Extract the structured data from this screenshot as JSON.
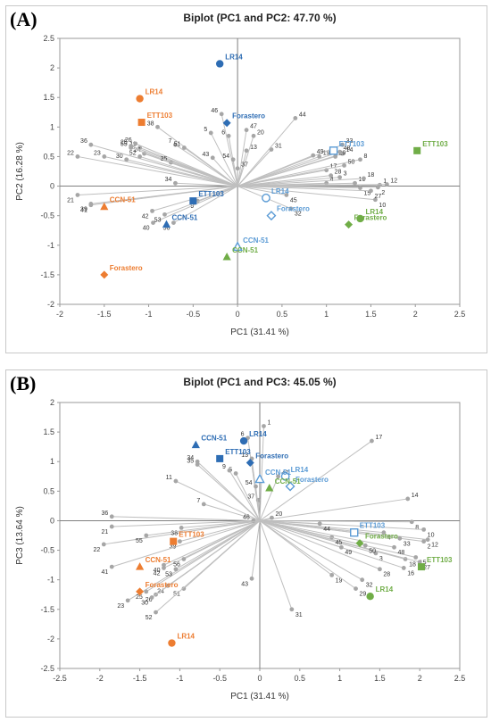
{
  "colors": {
    "ETT103": "#F0782D",
    "CCN51": "#E8833A",
    "LR14": "#2E6DB4",
    "orange": "#ED7D31",
    "darkblue": "#2E6DB4",
    "lightblue": "#5B9BD5",
    "green": "#70AD47",
    "vector": "#BFBFBF",
    "vecpoint": "#A6A6A6"
  },
  "chart_data": [
    {
      "type": "scatter",
      "panel_tag": "(A)",
      "title": "Biplot (PC1 and PC2: 47.70 %)",
      "xlabel": "PC1 (31.41 %)",
      "ylabel": "PC2 (16.28 %)",
      "xlim": [
        -2,
        2.5
      ],
      "ylim": [
        -2,
        2.5
      ],
      "xticks": [
        "-2",
        "-1.5",
        "-1",
        "-0.5",
        "0",
        "0.5",
        "1",
        "1.5",
        "2",
        "2.5"
      ],
      "yticks": [
        "-2",
        "-1.5",
        "-1",
        "-0.5",
        "0",
        "0.5",
        "1",
        "1.5",
        "2",
        "2.5"
      ],
      "vectors": [
        {
          "label": "1",
          "x": 1.6,
          "y": 0.02
        },
        {
          "label": "2",
          "x": 1.58,
          "y": -0.02
        },
        {
          "label": "3",
          "x": 1.15,
          "y": 0.15
        },
        {
          "label": "4",
          "x": 1.0,
          "y": 0.05
        },
        {
          "label": "5",
          "x": -0.3,
          "y": 0.9
        },
        {
          "label": "6",
          "x": -0.1,
          "y": 0.85
        },
        {
          "label": "7",
          "x": -0.7,
          "y": 0.7
        },
        {
          "label": "8",
          "x": 1.38,
          "y": 0.45
        },
        {
          "label": "9",
          "x": -0.45,
          "y": -0.25
        },
        {
          "label": "10",
          "x": 1.55,
          "y": -0.23
        },
        {
          "label": "11",
          "x": -1.1,
          "y": 0.65
        },
        {
          "label": "12",
          "x": 1.68,
          "y": 0.03
        },
        {
          "label": "13",
          "x": 0.1,
          "y": 0.6
        },
        {
          "label": "14",
          "x": 1.18,
          "y": 0.55
        },
        {
          "label": "15",
          "x": 1.38,
          "y": -0.03
        },
        {
          "label": "16",
          "x": 1.32,
          "y": 0.05
        },
        {
          "label": "17",
          "x": 1.0,
          "y": 0.27
        },
        {
          "label": "18",
          "x": 1.42,
          "y": 0.13
        },
        {
          "label": "19",
          "x": 0.92,
          "y": 0.5
        },
        {
          "label": "20",
          "x": 0.18,
          "y": 0.85
        },
        {
          "label": "21",
          "x": -1.8,
          "y": -0.15
        },
        {
          "label": "22",
          "x": -1.8,
          "y": 0.5
        },
        {
          "label": "23",
          "x": -1.5,
          "y": 0.5
        },
        {
          "label": "24",
          "x": -1.05,
          "y": 0.55
        },
        {
          "label": "25",
          "x": -1.2,
          "y": 0.68
        },
        {
          "label": "26",
          "x": -1.15,
          "y": 0.72
        },
        {
          "label": "27",
          "x": 1.5,
          "y": -0.08
        },
        {
          "label": "28",
          "x": 1.05,
          "y": 0.18
        },
        {
          "label": "29",
          "x": 1.1,
          "y": 0.5
        },
        {
          "label": "30",
          "x": -1.25,
          "y": 0.45
        },
        {
          "label": "31",
          "x": 0.38,
          "y": 0.62
        },
        {
          "label": "32",
          "x": 0.6,
          "y": -0.38
        },
        {
          "label": "33",
          "x": 1.18,
          "y": 0.7
        },
        {
          "label": "34",
          "x": -0.7,
          "y": 0.05
        },
        {
          "label": "35",
          "x": -0.75,
          "y": 0.4
        },
        {
          "label": "36",
          "x": -1.65,
          "y": 0.7
        },
        {
          "label": "37",
          "x": 0.0,
          "y": 0.3
        },
        {
          "label": "38",
          "x": -0.9,
          "y": 1.0
        },
        {
          "label": "39",
          "x": -1.65,
          "y": -0.3
        },
        {
          "label": "40",
          "x": -0.95,
          "y": -0.62
        },
        {
          "label": "41",
          "x": -1.65,
          "y": -0.32
        },
        {
          "label": "42",
          "x": -0.96,
          "y": -0.42
        },
        {
          "label": "43",
          "x": -0.28,
          "y": 0.48
        },
        {
          "label": "44",
          "x": 0.65,
          "y": 1.15
        },
        {
          "label": "45",
          "x": 0.55,
          "y": -0.15
        },
        {
          "label": "46",
          "x": -0.18,
          "y": 1.22
        },
        {
          "label": "47",
          "x": 0.1,
          "y": 0.95
        },
        {
          "label": "48",
          "x": 1.15,
          "y": 0.58
        },
        {
          "label": "49",
          "x": 0.85,
          "y": 0.52
        },
        {
          "label": "50",
          "x": 1.2,
          "y": 0.35
        },
        {
          "label": "51",
          "x": -0.6,
          "y": 0.65
        },
        {
          "label": "52",
          "x": -1.1,
          "y": 0.5
        },
        {
          "label": "53",
          "x": -0.82,
          "y": -0.48
        },
        {
          "label": "54",
          "x": -0.05,
          "y": 0.45
        },
        {
          "label": "55",
          "x": -1.2,
          "y": 0.65
        },
        {
          "label": "56",
          "x": -0.72,
          "y": -0.62
        }
      ],
      "groups": [
        {
          "label": "LR14",
          "x": -0.2,
          "y": 2.07,
          "shape": "circle",
          "fill": "darkblue",
          "text": "darkblue"
        },
        {
          "label": "LR14",
          "x": -1.1,
          "y": 1.48,
          "shape": "circle",
          "fill": "orange",
          "text": "orange"
        },
        {
          "label": "LR14",
          "x": 0.32,
          "y": -0.2,
          "shape": "circle",
          "fill": "none",
          "text": "lightblue"
        },
        {
          "label": "LR14",
          "x": 1.38,
          "y": -0.55,
          "shape": "circle",
          "fill": "green",
          "text": "green"
        },
        {
          "label": "ETT103",
          "x": -1.08,
          "y": 1.08,
          "shape": "square",
          "fill": "orange",
          "text": "orange"
        },
        {
          "label": "ETT103",
          "x": -0.5,
          "y": -0.25,
          "shape": "square",
          "fill": "darkblue",
          "text": "darkblue"
        },
        {
          "label": "ETT103",
          "x": 1.08,
          "y": 0.6,
          "shape": "square",
          "fill": "none",
          "text": "lightblue"
        },
        {
          "label": "ETT103",
          "x": 2.02,
          "y": 0.6,
          "shape": "square",
          "fill": "green",
          "text": "green"
        },
        {
          "label": "Forastero",
          "x": -0.12,
          "y": 1.07,
          "shape": "diamond",
          "fill": "darkblue",
          "text": "darkblue"
        },
        {
          "label": "Forastero",
          "x": -1.5,
          "y": -1.5,
          "shape": "diamond",
          "fill": "orange",
          "text": "orange"
        },
        {
          "label": "Forastero",
          "x": 0.38,
          "y": -0.5,
          "shape": "diamond",
          "fill": "none",
          "text": "lightblue"
        },
        {
          "label": "Forastero",
          "x": 1.25,
          "y": -0.65,
          "shape": "diamond",
          "fill": "green",
          "text": "green"
        },
        {
          "label": "CCN-51",
          "x": -1.5,
          "y": -0.35,
          "shape": "triangle",
          "fill": "orange",
          "text": "orange"
        },
        {
          "label": "CCN-51",
          "x": -0.8,
          "y": -0.65,
          "shape": "triangle",
          "fill": "darkblue",
          "text": "darkblue"
        },
        {
          "label": "CCN-51",
          "x": 0.0,
          "y": -1.03,
          "shape": "triangle",
          "fill": "none",
          "text": "lightblue"
        },
        {
          "label": "CCN-51",
          "x": -0.12,
          "y": -1.2,
          "shape": "triangle",
          "fill": "green",
          "text": "green"
        }
      ]
    },
    {
      "type": "scatter",
      "panel_tag": "(B)",
      "title": "Biplot (PC1 and PC3: 45.05 %)",
      "xlabel": "PC1 (31.41 %)",
      "ylabel": "PC3 (13.64 %)",
      "xlim": [
        -2.5,
        2.5
      ],
      "ylim": [
        -2.5,
        2
      ],
      "xticks": [
        "-2.5",
        "-2",
        "-1.5",
        "-1",
        "-0.5",
        "0",
        "0.5",
        "1",
        "1.5",
        "2",
        "2.5"
      ],
      "yticks": [
        "-2.5",
        "-2",
        "-1.5",
        "-1",
        "-0.5",
        "0",
        "0.5",
        "1",
        "1.5",
        "2"
      ],
      "vectors": [
        {
          "label": "1",
          "x": 0.05,
          "y": 1.6
        },
        {
          "label": "2",
          "x": 2.05,
          "y": -0.35
        },
        {
          "label": "3",
          "x": 1.45,
          "y": -0.55
        },
        {
          "label": "4",
          "x": 1.55,
          "y": -0.2
        },
        {
          "label": "5",
          "x": -0.3,
          "y": 0.8
        },
        {
          "label": "6",
          "x": -0.15,
          "y": 1.4
        },
        {
          "label": "7",
          "x": -0.7,
          "y": 0.28
        },
        {
          "label": "8",
          "x": 1.9,
          "y": -0.02
        },
        {
          "label": "9",
          "x": -0.38,
          "y": 0.85
        },
        {
          "label": "10",
          "x": 2.05,
          "y": -0.15
        },
        {
          "label": "11",
          "x": -1.05,
          "y": 0.67
        },
        {
          "label": "12",
          "x": 2.1,
          "y": -0.32
        },
        {
          "label": "13",
          "x": -0.1,
          "y": 1.05
        },
        {
          "label": "14",
          "x": 1.85,
          "y": 0.37
        },
        {
          "label": "15",
          "x": 1.95,
          "y": -0.62
        },
        {
          "label": "16",
          "x": 1.8,
          "y": -0.8
        },
        {
          "label": "17",
          "x": 1.4,
          "y": 1.35
        },
        {
          "label": "18",
          "x": 1.82,
          "y": -0.65
        },
        {
          "label": "19",
          "x": 0.9,
          "y": -0.92
        },
        {
          "label": "20",
          "x": 0.15,
          "y": 0.05
        },
        {
          "label": "21",
          "x": -1.85,
          "y": -0.1
        },
        {
          "label": "22",
          "x": -1.95,
          "y": -0.4
        },
        {
          "label": "23",
          "x": -1.65,
          "y": -1.35
        },
        {
          "label": "24",
          "x": -1.15,
          "y": -1.1
        },
        {
          "label": "25",
          "x": -1.42,
          "y": -1.2
        },
        {
          "label": "26",
          "x": -1.3,
          "y": -1.25
        },
        {
          "label": "27",
          "x": 2.0,
          "y": -0.7
        },
        {
          "label": "28",
          "x": 1.5,
          "y": -0.82
        },
        {
          "label": "29",
          "x": 1.2,
          "y": -1.15
        },
        {
          "label": "30",
          "x": -1.35,
          "y": -1.3
        },
        {
          "label": "31",
          "x": 0.4,
          "y": -1.5
        },
        {
          "label": "32",
          "x": 1.28,
          "y": -1.0
        },
        {
          "label": "33",
          "x": 1.75,
          "y": -0.3
        },
        {
          "label": "34",
          "x": -0.78,
          "y": 1.0
        },
        {
          "label": "35",
          "x": -0.78,
          "y": 0.95
        },
        {
          "label": "36",
          "x": -1.85,
          "y": 0.07
        },
        {
          "label": "37",
          "x": -0.02,
          "y": 0.35
        },
        {
          "label": "38",
          "x": -0.98,
          "y": -0.12
        },
        {
          "label": "39",
          "x": -1.0,
          "y": -0.35
        },
        {
          "label": "40",
          "x": -1.2,
          "y": -0.75
        },
        {
          "label": "41",
          "x": -1.85,
          "y": -0.78
        },
        {
          "label": "42",
          "x": -1.2,
          "y": -0.8
        },
        {
          "label": "43",
          "x": -0.1,
          "y": -0.98
        },
        {
          "label": "44",
          "x": 0.75,
          "y": -0.05
        },
        {
          "label": "45",
          "x": 0.9,
          "y": -0.28
        },
        {
          "label": "46",
          "x": -0.08,
          "y": 0.0
        },
        {
          "label": "47",
          "x": 0.23,
          "y": 0.75
        },
        {
          "label": "48",
          "x": 1.68,
          "y": -0.45
        },
        {
          "label": "49",
          "x": 1.02,
          "y": -0.45
        },
        {
          "label": "50",
          "x": 1.32,
          "y": -0.42
        },
        {
          "label": "51",
          "x": -0.95,
          "y": -1.15
        },
        {
          "label": "52",
          "x": -1.3,
          "y": -1.55
        },
        {
          "label": "53",
          "x": -1.05,
          "y": -0.82
        },
        {
          "label": "54",
          "x": -0.05,
          "y": 0.58
        },
        {
          "label": "55",
          "x": -1.42,
          "y": -0.25
        },
        {
          "label": "56",
          "x": -0.95,
          "y": -0.65
        }
      ],
      "groups": [
        {
          "label": "LR14",
          "x": -0.2,
          "y": 1.35,
          "shape": "circle",
          "fill": "darkblue",
          "text": "darkblue"
        },
        {
          "label": "LR14",
          "x": 0.32,
          "y": 0.75,
          "shape": "circle",
          "fill": "none",
          "text": "lightblue"
        },
        {
          "label": "LR14",
          "x": -1.1,
          "y": -2.07,
          "shape": "circle",
          "fill": "orange",
          "text": "orange"
        },
        {
          "label": "LR14",
          "x": 1.38,
          "y": -1.28,
          "shape": "circle",
          "fill": "green",
          "text": "green"
        },
        {
          "label": "ETT103",
          "x": -0.5,
          "y": 1.05,
          "shape": "square",
          "fill": "darkblue",
          "text": "darkblue"
        },
        {
          "label": "ETT103",
          "x": -1.08,
          "y": -0.35,
          "shape": "square",
          "fill": "orange",
          "text": "orange"
        },
        {
          "label": "ETT103",
          "x": 1.18,
          "y": -0.2,
          "shape": "square",
          "fill": "none",
          "text": "lightblue"
        },
        {
          "label": "ETT103",
          "x": 2.02,
          "y": -0.78,
          "shape": "square",
          "fill": "green",
          "text": "green"
        },
        {
          "label": "Forastero",
          "x": -0.12,
          "y": 0.98,
          "shape": "diamond",
          "fill": "darkblue",
          "text": "darkblue"
        },
        {
          "label": "Forastero",
          "x": 0.38,
          "y": 0.58,
          "shape": "diamond",
          "fill": "none",
          "text": "lightblue"
        },
        {
          "label": "Forastero",
          "x": -1.5,
          "y": -1.2,
          "shape": "diamond",
          "fill": "orange",
          "text": "orange"
        },
        {
          "label": "Forastero",
          "x": 1.25,
          "y": -0.38,
          "shape": "diamond",
          "fill": "green",
          "text": "green"
        },
        {
          "label": "CCN-51",
          "x": -0.8,
          "y": 1.28,
          "shape": "triangle",
          "fill": "darkblue",
          "text": "darkblue"
        },
        {
          "label": "CCN-51",
          "x": 0.0,
          "y": 0.7,
          "shape": "triangle",
          "fill": "none",
          "text": "lightblue"
        },
        {
          "label": "CCN-51",
          "x": 0.12,
          "y": 0.55,
          "shape": "triangle",
          "fill": "green",
          "text": "green"
        },
        {
          "label": "CCN-51",
          "x": -1.5,
          "y": -0.78,
          "shape": "triangle",
          "fill": "orange",
          "text": "orange"
        }
      ]
    }
  ]
}
